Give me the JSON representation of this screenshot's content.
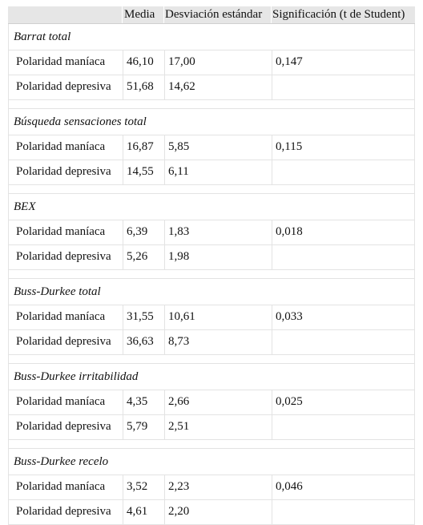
{
  "header": {
    "col1": "",
    "col2": "Media",
    "col3": "Desviación estándar",
    "col4": "Significación (t de Student)"
  },
  "sections": [
    {
      "title": "Barrat total",
      "rows": [
        {
          "label": "Polaridad maníaca",
          "media": "46,10",
          "sd": "17,00",
          "sig": "0,147"
        },
        {
          "label": "Polaridad depresiva",
          "media": "51,68",
          "sd": "14,62",
          "sig": ""
        }
      ]
    },
    {
      "title": "Búsqueda sensaciones total",
      "rows": [
        {
          "label": "Polaridad maníaca",
          "media": "16,87",
          "sd": "5,85",
          "sig": "0,115"
        },
        {
          "label": "Polaridad depresiva",
          "media": "14,55",
          "sd": "6,11",
          "sig": ""
        }
      ]
    },
    {
      "title": "BEX",
      "rows": [
        {
          "label": "Polaridad maníaca",
          "media": "6,39",
          "sd": "1,83",
          "sig": "0,018"
        },
        {
          "label": "Polaridad depresiva",
          "media": "5,26",
          "sd": "1,98",
          "sig": ""
        }
      ]
    },
    {
      "title": "Buss-Durkee total",
      "rows": [
        {
          "label": "Polaridad maníaca",
          "media": "31,55",
          "sd": "10,61",
          "sig": "0,033"
        },
        {
          "label": "Polaridad depresiva",
          "media": "36,63",
          "sd": "8,73",
          "sig": ""
        }
      ]
    },
    {
      "title": "Buss-Durkee irritabilidad",
      "rows": [
        {
          "label": "Polaridad maníaca",
          "media": "4,35",
          "sd": "2,66",
          "sig": "0,025"
        },
        {
          "label": "Polaridad depresiva",
          "media": "5,79",
          "sd": "2,51",
          "sig": ""
        }
      ]
    },
    {
      "title": "Buss-Durkee recelo",
      "rows": [
        {
          "label": "Polaridad maníaca",
          "media": "3,52",
          "sd": "2,23",
          "sig": "0,046"
        },
        {
          "label": "Polaridad depresiva",
          "media": "4,61",
          "sd": "2,20",
          "sig": ""
        }
      ]
    }
  ]
}
